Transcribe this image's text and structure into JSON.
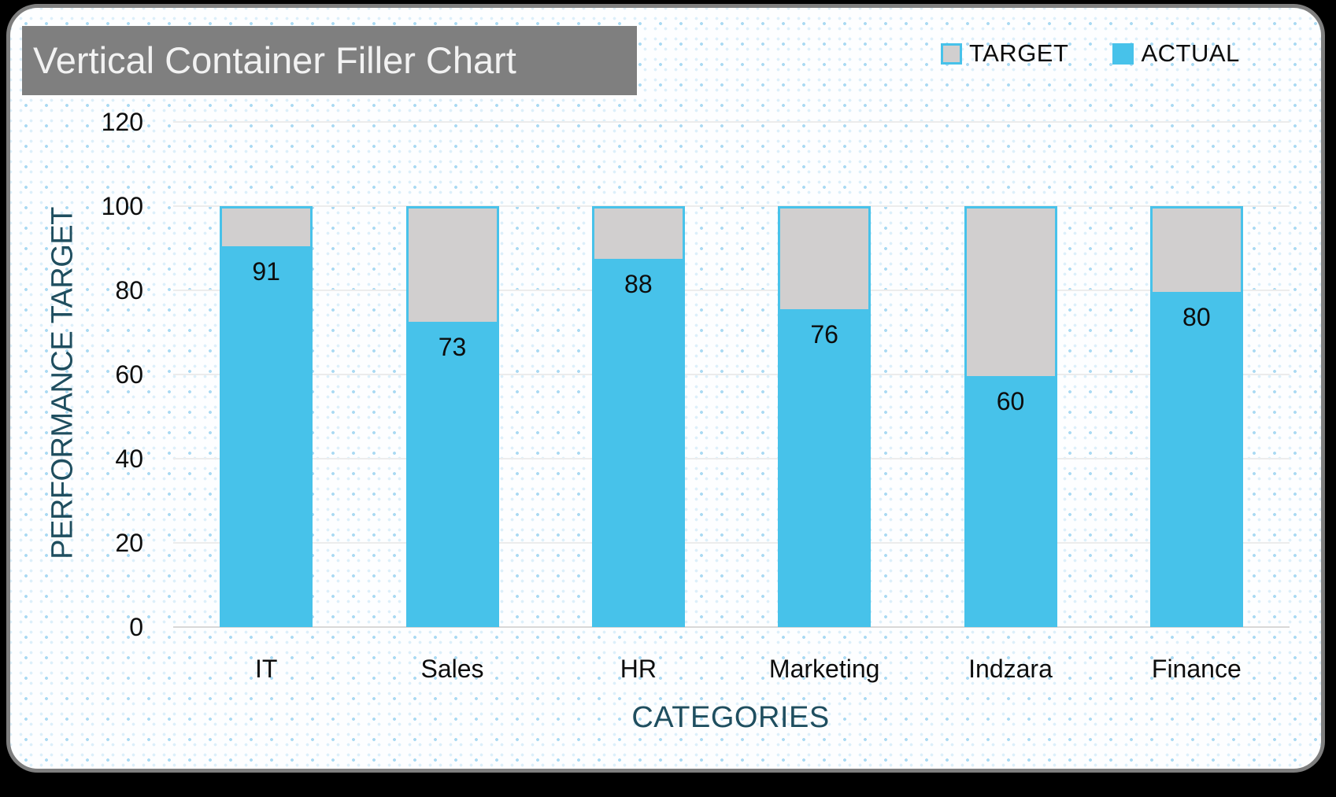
{
  "header": {
    "title": "Vertical Container Filler Chart"
  },
  "legend": {
    "position": "top-right",
    "items": [
      {
        "label": "TARGET",
        "color": "#D1CFCF",
        "border": "#47C2EA"
      },
      {
        "label": "ACTUAL",
        "color": "#47C2EA"
      }
    ]
  },
  "chart_data": {
    "type": "bar",
    "subtype": "vertical-container-filler",
    "title": "Vertical Container Filler Chart",
    "categories": [
      "IT",
      "Sales",
      "HR",
      "Marketing",
      "Indzara",
      "Finance"
    ],
    "series": [
      {
        "name": "ACTUAL",
        "values": [
          91,
          73,
          88,
          76,
          60,
          80
        ],
        "color": "#47C2EA"
      },
      {
        "name": "TARGET",
        "values": [
          100,
          100,
          100,
          100,
          100,
          100
        ],
        "color": "#D1CFCF"
      }
    ],
    "xlabel": "CATEGORIES",
    "ylabel": "PERFORMANCE TARGET",
    "ylim": [
      0,
      120
    ],
    "yticks": [
      0,
      20,
      40,
      60,
      80,
      100,
      120
    ],
    "grid": true,
    "legend_position": "top-right",
    "value_labels": "inside top of ACTUAL fill"
  },
  "colors": {
    "actual_blue": "#47C2EA",
    "target_gray": "#D1CFCF",
    "title_bar_gray": "#7F7F7F",
    "title_text": "#F2F2F2",
    "axis_title_teal": "#1F4E5F",
    "tick_text": "#0D0D0D",
    "gridline": "#ECECEC",
    "card_border": "#7E7E7E",
    "dot_pattern_blue": "#A9D9F2",
    "page_background": "#000000"
  }
}
